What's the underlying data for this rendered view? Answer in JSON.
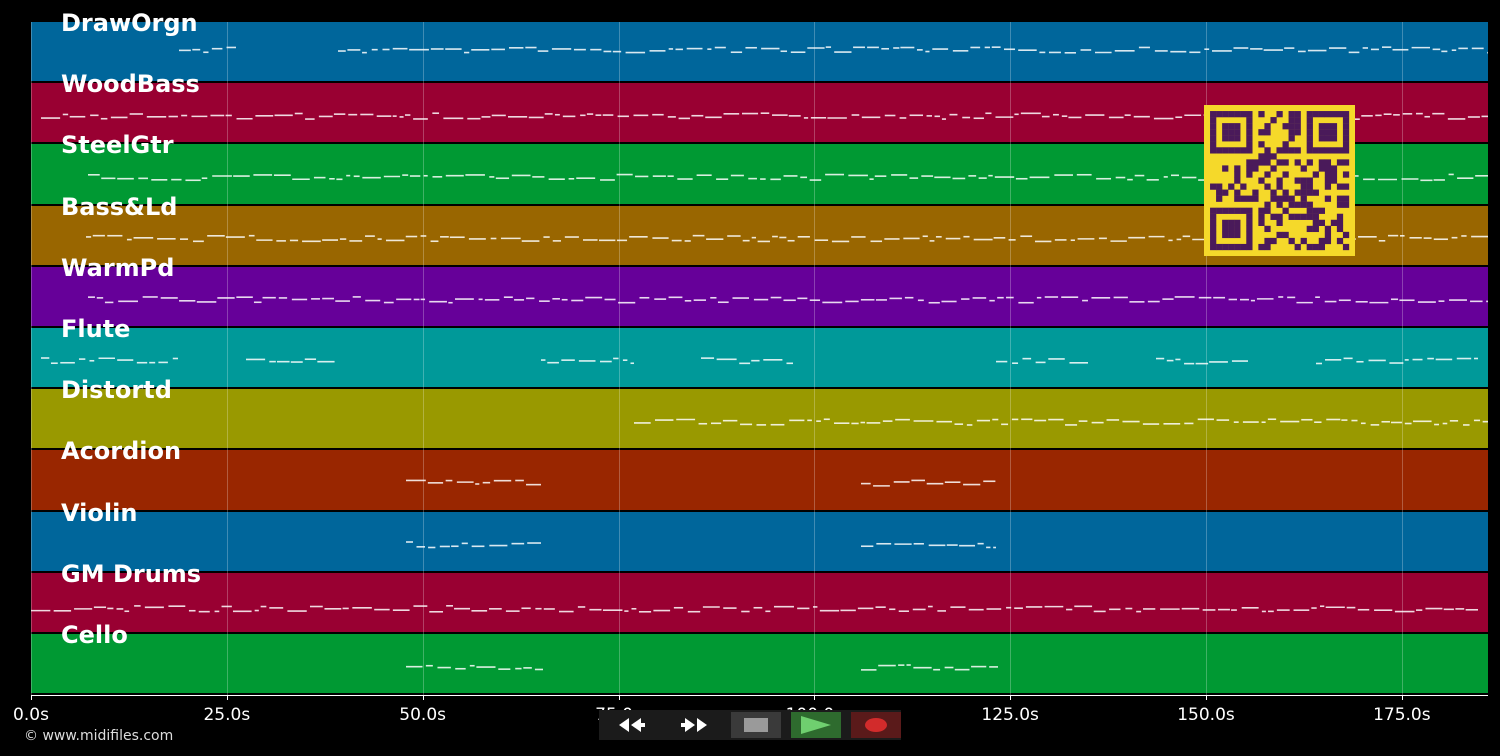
{
  "tracks": [
    {
      "name": "DrawOrgn",
      "color": "#00669b"
    },
    {
      "name": "WoodBass",
      "color": "#990032"
    },
    {
      "name": "SteelGtr",
      "color": "#009933"
    },
    {
      "name": "Bass&Ld",
      "color": "#996600"
    },
    {
      "name": "WarmPd",
      "color": "#660099"
    },
    {
      "name": "Flute",
      "color": "#009999"
    },
    {
      "name": "Distortd",
      "color": "#999900"
    },
    {
      "name": "Acordion",
      "color": "#992600"
    },
    {
      "name": "Violin",
      "color": "#00669b"
    },
    {
      "name": "GM Drums",
      "color": "#990032"
    },
    {
      "name": "Cello",
      "color": "#009933"
    }
  ],
  "timeline": {
    "ticks": [
      "0.0s",
      "25.0s",
      "50.0s",
      "75.0s",
      "100.0s",
      "125.0s",
      "150.0s",
      "175.0s"
    ]
  },
  "copyright": "© www.midifiles.com",
  "transport": {
    "rewind_icon": "double-left-arrow-icon",
    "forward_icon": "double-right-arrow-icon",
    "stop_icon": "stop-square-icon",
    "play_icon": "play-triangle-icon",
    "record_icon": "record-dot-icon",
    "play_color": "#2e8b2e",
    "record_color": "#d22b2b"
  },
  "qr_code": {
    "icon": "qr-code-icon",
    "colors": [
      "#f5d92a",
      "#4a1a5a"
    ]
  }
}
